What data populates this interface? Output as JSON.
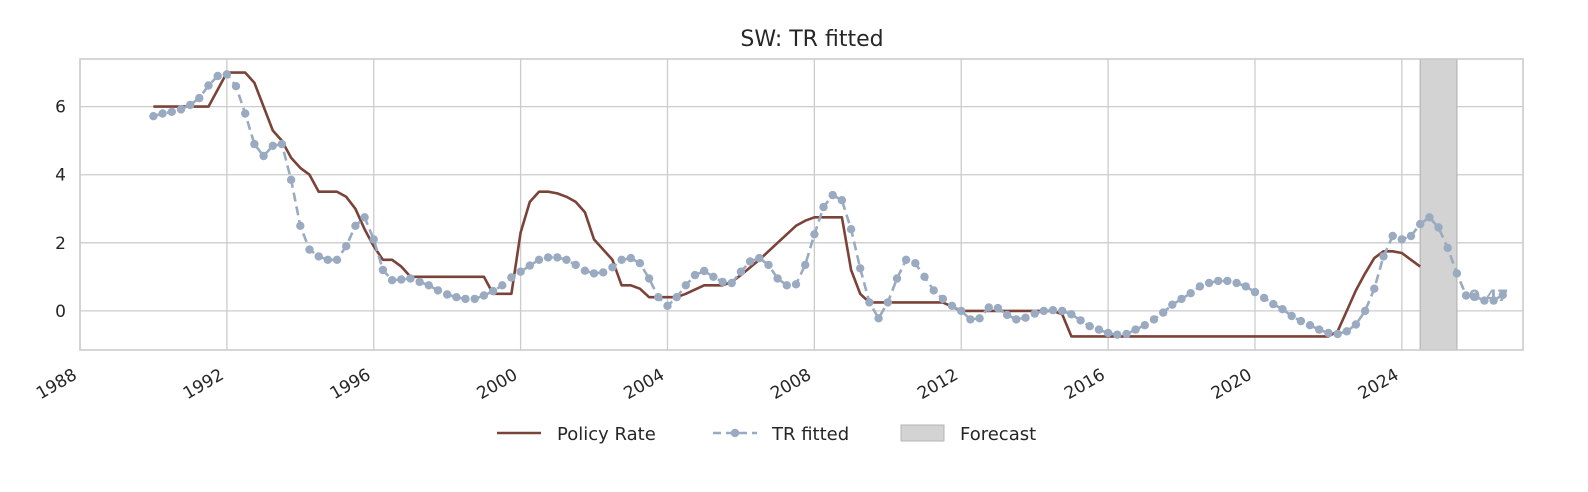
{
  "chart_data": {
    "type": "line",
    "title": "SW: TR fitted",
    "xlabel": "",
    "ylabel": "",
    "xlim": [
      1988,
      2027.3
    ],
    "ylim": [
      -1.15,
      7.4
    ],
    "grid": true,
    "x_ticks": [
      1988,
      1992,
      1996,
      2000,
      2004,
      2008,
      2012,
      2016,
      2020,
      2024
    ],
    "x_tick_labels": [
      "1988",
      "1992",
      "1996",
      "2000",
      "2004",
      "2008",
      "2012",
      "2016",
      "2020",
      "2024"
    ],
    "y_ticks": [
      0,
      2,
      4,
      6
    ],
    "y_tick_labels": [
      "0",
      "2",
      "4",
      "6"
    ],
    "legend_position": "bottom-center",
    "colors": {
      "policy_rate": "#7b4238",
      "tr_fitted": "#9aabc1",
      "forecast": "#d3d3d3",
      "grid": "#cccccc",
      "text": "#262626"
    },
    "forecast_band": {
      "label": "Forecast",
      "x_start": 2024.5,
      "x_end": 2025.5
    },
    "annotations": [
      {
        "text": "0.47",
        "x": 2025.5,
        "y": 0.47
      }
    ],
    "series": [
      {
        "name": "Policy Rate",
        "style": "solid",
        "points": [
          [
            1990.0,
            6.0
          ],
          [
            1991.5,
            6.0
          ],
          [
            1991.75,
            6.5
          ],
          [
            1992.0,
            7.0
          ],
          [
            1992.25,
            7.0
          ],
          [
            1992.5,
            7.0
          ],
          [
            1992.75,
            6.7
          ],
          [
            1993.0,
            6.0
          ],
          [
            1993.25,
            5.3
          ],
          [
            1993.5,
            5.0
          ],
          [
            1993.75,
            4.5
          ],
          [
            1994.0,
            4.2
          ],
          [
            1994.25,
            4.0
          ],
          [
            1994.5,
            3.5
          ],
          [
            1995.0,
            3.5
          ],
          [
            1995.25,
            3.35
          ],
          [
            1995.5,
            3.0
          ],
          [
            1995.75,
            2.4
          ],
          [
            1996.0,
            1.9
          ],
          [
            1996.25,
            1.5
          ],
          [
            1996.5,
            1.5
          ],
          [
            1996.75,
            1.3
          ],
          [
            1997.0,
            1.0
          ],
          [
            1999.0,
            1.0
          ],
          [
            1999.25,
            0.5
          ],
          [
            1999.75,
            0.5
          ],
          [
            2000.0,
            2.3
          ],
          [
            2000.25,
            3.2
          ],
          [
            2000.5,
            3.5
          ],
          [
            2000.75,
            3.5
          ],
          [
            2001.0,
            3.45
          ],
          [
            2001.25,
            3.35
          ],
          [
            2001.5,
            3.2
          ],
          [
            2001.75,
            2.9
          ],
          [
            2002.0,
            2.1
          ],
          [
            2002.5,
            1.5
          ],
          [
            2002.75,
            0.75
          ],
          [
            2003.0,
            0.75
          ],
          [
            2003.25,
            0.65
          ],
          [
            2003.5,
            0.4
          ],
          [
            2003.75,
            0.4
          ],
          [
            2004.25,
            0.4
          ],
          [
            2004.5,
            0.5
          ],
          [
            2005.0,
            0.75
          ],
          [
            2005.5,
            0.75
          ],
          [
            2005.75,
            0.85
          ],
          [
            2006.0,
            1.05
          ],
          [
            2006.5,
            1.5
          ],
          [
            2007.0,
            2.0
          ],
          [
            2007.5,
            2.5
          ],
          [
            2007.75,
            2.65
          ],
          [
            2008.0,
            2.75
          ],
          [
            2008.75,
            2.75
          ],
          [
            2009.0,
            1.2
          ],
          [
            2009.25,
            0.5
          ],
          [
            2009.5,
            0.25
          ],
          [
            2011.5,
            0.25
          ],
          [
            2012.0,
            0.0
          ],
          [
            2014.5,
            0.0
          ],
          [
            2014.75,
            -0.1
          ],
          [
            2015.0,
            -0.75
          ],
          [
            2022.0,
            -0.75
          ],
          [
            2022.25,
            -0.6
          ],
          [
            2022.5,
            0.0
          ],
          [
            2022.75,
            0.6
          ],
          [
            2023.0,
            1.1
          ],
          [
            2023.25,
            1.55
          ],
          [
            2023.5,
            1.75
          ],
          [
            2023.75,
            1.75
          ],
          [
            2024.0,
            1.7
          ],
          [
            2024.25,
            1.5
          ],
          [
            2024.5,
            1.3
          ]
        ]
      },
      {
        "name": "TR fitted",
        "style": "dashed-dots",
        "start": 1990.0,
        "step": 0.25,
        "values": [
          5.72,
          5.8,
          5.85,
          5.92,
          6.05,
          6.25,
          6.62,
          6.9,
          6.95,
          6.6,
          5.8,
          4.9,
          4.55,
          4.85,
          4.9,
          3.85,
          2.5,
          1.8,
          1.6,
          1.5,
          1.5,
          1.9,
          2.5,
          2.75,
          2.1,
          1.2,
          0.9,
          0.92,
          0.95,
          0.85,
          0.75,
          0.6,
          0.48,
          0.4,
          0.35,
          0.35,
          0.45,
          0.58,
          0.75,
          0.98,
          1.15,
          1.33,
          1.5,
          1.57,
          1.57,
          1.5,
          1.35,
          1.18,
          1.1,
          1.13,
          1.28,
          1.5,
          1.55,
          1.4,
          0.95,
          0.4,
          0.15,
          0.4,
          0.75,
          1.05,
          1.17,
          1.0,
          0.85,
          0.82,
          1.15,
          1.45,
          1.55,
          1.35,
          0.95,
          0.75,
          0.78,
          1.35,
          2.25,
          3.05,
          3.4,
          3.25,
          2.4,
          1.25,
          0.25,
          -0.22,
          0.25,
          0.95,
          1.5,
          1.4,
          1.0,
          0.6,
          0.35,
          0.15,
          0.0,
          -0.25,
          -0.22,
          0.1,
          0.08,
          -0.12,
          -0.25,
          -0.2,
          -0.08,
          0.0,
          0.02,
          0.0,
          -0.1,
          -0.28,
          -0.45,
          -0.55,
          -0.65,
          -0.7,
          -0.68,
          -0.55,
          -0.42,
          -0.25,
          -0.05,
          0.18,
          0.35,
          0.52,
          0.72,
          0.82,
          0.88,
          0.88,
          0.82,
          0.72,
          0.55,
          0.38,
          0.2,
          0.05,
          -0.15,
          -0.3,
          -0.42,
          -0.55,
          -0.65,
          -0.68,
          -0.6,
          -0.4,
          0.0,
          0.65,
          1.6,
          2.2,
          2.1,
          2.2,
          2.55,
          2.75,
          2.45,
          1.85,
          1.1,
          0.45,
          0.42,
          0.3,
          0.3,
          0.47
        ]
      }
    ],
    "legend": [
      {
        "label": "Policy Rate",
        "kind": "line"
      },
      {
        "label": "TR fitted",
        "kind": "dashed-marker"
      },
      {
        "label": "Forecast",
        "kind": "patch"
      }
    ]
  }
}
